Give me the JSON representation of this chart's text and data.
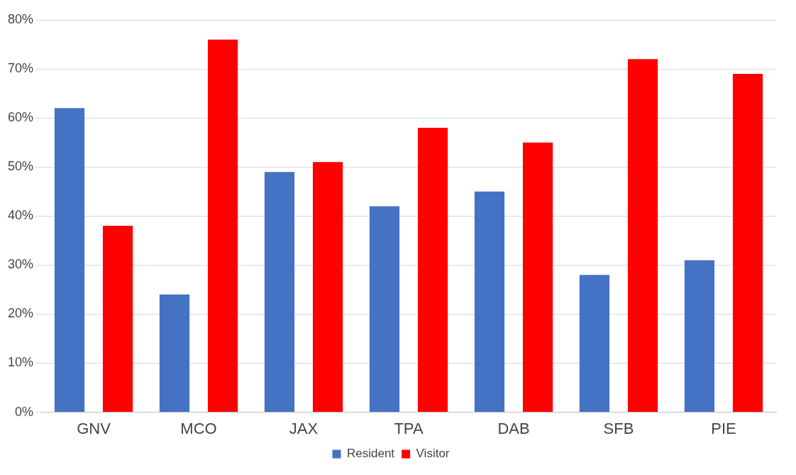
{
  "chart_data": {
    "type": "bar",
    "categories": [
      "GNV",
      "MCO",
      "JAX",
      "TPA",
      "DAB",
      "SFB",
      "PIE"
    ],
    "series": [
      {
        "name": "Resident",
        "color": "#4472c4",
        "values": [
          62,
          24,
          49,
          42,
          45,
          28,
          31
        ]
      },
      {
        "name": "Visitor",
        "color": "#ff0000",
        "values": [
          38,
          76,
          51,
          58,
          55,
          72,
          69
        ]
      }
    ],
    "ylim": [
      0,
      80
    ],
    "yticks": [
      {
        "value": 0,
        "label": "0%"
      },
      {
        "value": 10,
        "label": "10%"
      },
      {
        "value": 20,
        "label": "20%"
      },
      {
        "value": 30,
        "label": "30%"
      },
      {
        "value": 40,
        "label": "40%"
      },
      {
        "value": 50,
        "label": "50%"
      },
      {
        "value": 60,
        "label": "60%"
      },
      {
        "value": 70,
        "label": "70%"
      },
      {
        "value": 80,
        "label": "80%"
      }
    ],
    "grid": "y",
    "legend": "bottom"
  }
}
